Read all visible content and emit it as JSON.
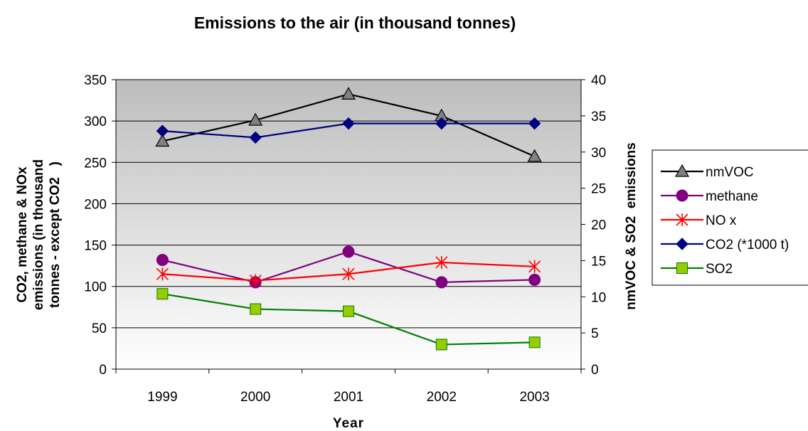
{
  "chart_data": {
    "type": "line",
    "title": "Emissions to the air (in thousand tonnes)",
    "xlabel": "Year",
    "ylabel_left": [
      "CO2, methane & NOx",
      "emissions (in thousand",
      "tonnes - except CO2   )"
    ],
    "ylabel_right": "nmVOC & SO2  emissions",
    "categories": [
      "1999",
      "2000",
      "2001",
      "2002",
      "2003"
    ],
    "ylim_left": [
      0,
      350
    ],
    "yticks_left": [
      0,
      50,
      100,
      150,
      200,
      250,
      300,
      350
    ],
    "ylim_right": [
      0,
      40
    ],
    "yticks_right": [
      0,
      5,
      10,
      15,
      20,
      25,
      30,
      35,
      40
    ],
    "grid": "horizontal",
    "legend_position": "right",
    "series": [
      {
        "name": "nmVOC",
        "axis": "right",
        "values": [
          31.5,
          34.4,
          38.0,
          35.0,
          29.4
        ],
        "color": "#000000",
        "marker_fill": "#808080",
        "marker": "triangle"
      },
      {
        "name": "methane",
        "axis": "left",
        "values": [
          132,
          105,
          142,
          105,
          108
        ],
        "color": "#800080",
        "marker_fill": "#800080",
        "marker": "circle"
      },
      {
        "name": "NO x",
        "axis": "left",
        "values": [
          115,
          107,
          115,
          129,
          124
        ],
        "color": "#ff0000",
        "marker_fill": "#ff0000",
        "marker": "star"
      },
      {
        "name": "CO2 (*1000 t)",
        "axis": "left",
        "values": [
          288,
          280,
          297,
          297,
          297
        ],
        "color": "#000080",
        "marker_fill": "#000080",
        "marker": "diamond"
      },
      {
        "name": "SO2",
        "axis": "right",
        "values": [
          10.4,
          8.3,
          8.0,
          3.4,
          3.7
        ],
        "color": "#008000",
        "marker_fill": "#99cc00",
        "marker": "square"
      }
    ]
  }
}
